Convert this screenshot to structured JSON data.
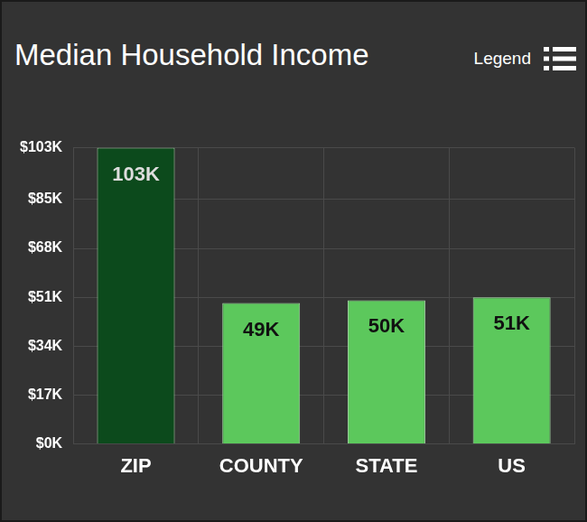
{
  "chart_data": {
    "type": "bar",
    "title": "Median Household Income",
    "annotations": [
      "Legend"
    ],
    "categories": [
      "ZIP",
      "COUNTY",
      "STATE",
      "US"
    ],
    "values": [
      103,
      49,
      50,
      51
    ],
    "value_labels": [
      "103K",
      "49K",
      "50K",
      "51K"
    ],
    "data_labels": true,
    "colors": [
      "#0c4a1c",
      "#5cc85c",
      "#5cc85c",
      "#5cc85c"
    ],
    "ylim": [
      0,
      103
    ],
    "yticks": [
      {
        "value": 0,
        "label": "$0K"
      },
      {
        "value": 17,
        "label": "$17K"
      },
      {
        "value": 34,
        "label": "$34K"
      },
      {
        "value": 51,
        "label": "$51K"
      },
      {
        "value": 68,
        "label": "$68K"
      },
      {
        "value": 85,
        "label": "$85K"
      },
      {
        "value": 103,
        "label": "$103K"
      }
    ],
    "grid": true
  }
}
